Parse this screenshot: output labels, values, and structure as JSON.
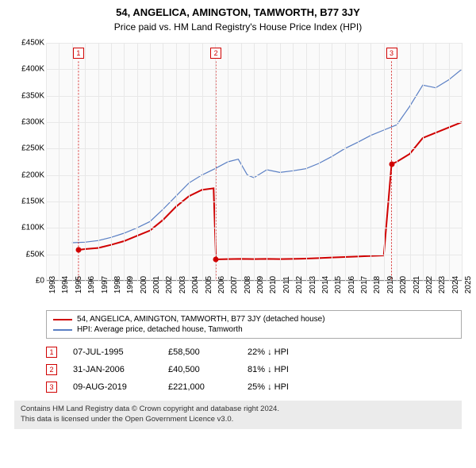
{
  "title": "54, ANGELICA, AMINGTON, TAMWORTH, B77 3JY",
  "subtitle": "Price paid vs. HM Land Registry's House Price Index (HPI)",
  "chart": {
    "type": "line",
    "background_color": "#fafafa",
    "grid_color": "#e8e8e8",
    "xlim": [
      1993,
      2025
    ],
    "ylim": [
      0,
      450000
    ],
    "ytick_step": 50000,
    "yticks_labels": [
      "£0",
      "£50K",
      "£100K",
      "£150K",
      "£200K",
      "£250K",
      "£300K",
      "£350K",
      "£400K",
      "£450K"
    ],
    "xticks": [
      1993,
      1994,
      1995,
      1996,
      1997,
      1998,
      1999,
      2000,
      2001,
      2002,
      2003,
      2004,
      2005,
      2006,
      2007,
      2008,
      2009,
      2010,
      2011,
      2012,
      2013,
      2014,
      2015,
      2016,
      2017,
      2018,
      2019,
      2020,
      2021,
      2022,
      2023,
      2024,
      2025
    ],
    "series": [
      {
        "name": "54, ANGELICA, AMINGTON, TAMWORTH, B77 3JY (detached house)",
        "color": "#d00000",
        "width": 2,
        "points": [
          [
            1995.5,
            58500
          ],
          [
            1996,
            60000
          ],
          [
            1997,
            62000
          ],
          [
            1998,
            68000
          ],
          [
            1999,
            75000
          ],
          [
            2000,
            85000
          ],
          [
            2001,
            95000
          ],
          [
            2002,
            115000
          ],
          [
            2003,
            140000
          ],
          [
            2004,
            160000
          ],
          [
            2005,
            172000
          ],
          [
            2005.9,
            175000
          ],
          [
            2006.08,
            40500
          ],
          [
            2007,
            41000
          ],
          [
            2008,
            41500
          ],
          [
            2009,
            41000
          ],
          [
            2010,
            41500
          ],
          [
            2011,
            41000
          ],
          [
            2012,
            41500
          ],
          [
            2013,
            42000
          ],
          [
            2014,
            43000
          ],
          [
            2015,
            44000
          ],
          [
            2016,
            45000
          ],
          [
            2017,
            46000
          ],
          [
            2018,
            47000
          ],
          [
            2019,
            48000
          ],
          [
            2019.6,
            221000
          ],
          [
            2020,
            225000
          ],
          [
            2021,
            240000
          ],
          [
            2022,
            270000
          ],
          [
            2023,
            280000
          ],
          [
            2024,
            290000
          ],
          [
            2025,
            300000
          ]
        ]
      },
      {
        "name": "HPI: Average price, detached house, Tamworth",
        "color": "#5a7fc4",
        "width": 1.2,
        "points": [
          [
            1995,
            72000
          ],
          [
            1996,
            73000
          ],
          [
            1997,
            76000
          ],
          [
            1998,
            82000
          ],
          [
            1999,
            90000
          ],
          [
            2000,
            100000
          ],
          [
            2001,
            112000
          ],
          [
            2002,
            135000
          ],
          [
            2003,
            160000
          ],
          [
            2004,
            185000
          ],
          [
            2005,
            200000
          ],
          [
            2006,
            212000
          ],
          [
            2007,
            225000
          ],
          [
            2007.8,
            230000
          ],
          [
            2008.5,
            200000
          ],
          [
            2009,
            195000
          ],
          [
            2010,
            210000
          ],
          [
            2011,
            205000
          ],
          [
            2012,
            208000
          ],
          [
            2013,
            212000
          ],
          [
            2014,
            222000
          ],
          [
            2015,
            235000
          ],
          [
            2016,
            250000
          ],
          [
            2017,
            262000
          ],
          [
            2018,
            275000
          ],
          [
            2019,
            285000
          ],
          [
            2020,
            295000
          ],
          [
            2021,
            330000
          ],
          [
            2022,
            370000
          ],
          [
            2023,
            365000
          ],
          [
            2024,
            380000
          ],
          [
            2025,
            400000
          ]
        ]
      }
    ],
    "markers": [
      {
        "n": "1",
        "year": 1995.5,
        "top_y": 430000
      },
      {
        "n": "2",
        "year": 2006.08,
        "top_y": 430000
      },
      {
        "n": "3",
        "year": 2019.6,
        "top_y": 430000
      }
    ],
    "sale_dots": [
      {
        "year": 1995.5,
        "price": 58500,
        "color": "#d00000"
      },
      {
        "year": 2006.08,
        "price": 40500,
        "color": "#d00000"
      },
      {
        "year": 2019.6,
        "price": 221000,
        "color": "#d00000"
      }
    ]
  },
  "legend": {
    "items": [
      {
        "color": "#d00000",
        "label": "54, ANGELICA, AMINGTON, TAMWORTH, B77 3JY (detached house)"
      },
      {
        "color": "#5a7fc4",
        "label": "HPI: Average price, detached house, Tamworth"
      }
    ]
  },
  "sales": [
    {
      "n": "1",
      "date": "07-JUL-1995",
      "price": "£58,500",
      "diff": "22% ↓ HPI"
    },
    {
      "n": "2",
      "date": "31-JAN-2006",
      "price": "£40,500",
      "diff": "81% ↓ HPI"
    },
    {
      "n": "3",
      "date": "09-AUG-2019",
      "price": "£221,000",
      "diff": "25% ↓ HPI"
    }
  ],
  "footer": {
    "line1": "Contains HM Land Registry data © Crown copyright and database right 2024.",
    "line2": "This data is licensed under the Open Government Licence v3.0."
  }
}
